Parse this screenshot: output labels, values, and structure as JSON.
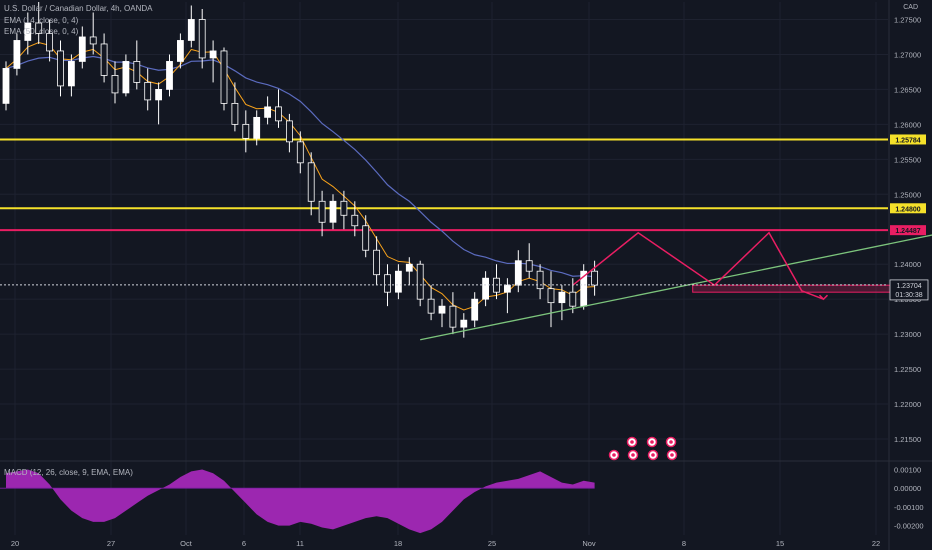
{
  "header": {
    "symbol_line": "U.S. Dollar / Canadian Dollar, 4h, OANDA",
    "ema1_line": "EMA (14, close, 0, 4)",
    "ema2_line": "EMA (50, close, 0, 4)",
    "currency": "CAD"
  },
  "macd": {
    "label": "MACD (12, 26, close, 9, EMA, EMA)"
  },
  "colors": {
    "background": "#131722",
    "up": "#ffffff",
    "down": "#ffffff",
    "ema_fast": "#f7a21b",
    "ema_slow": "#5b6bbf",
    "support_level": "#f5e12a",
    "resistance_level": "#e91e63",
    "trendline": "#7cc47c",
    "projection": "#e91e63",
    "macd_hist": "#9c27b0"
  },
  "chart_data": [
    {
      "type": "candlestick",
      "title": "U.S. Dollar / Canadian Dollar, 4h, OANDA",
      "y_axis": {
        "ticks": [
          "1.27500",
          "1.27000",
          "1.26500",
          "1.26000",
          "1.25500",
          "1.25000",
          "1.24000",
          "1.23500",
          "1.23000",
          "1.22500",
          "1.22000",
          "1.21500"
        ],
        "range": [
          1.212,
          1.2775
        ]
      },
      "x_axis": {
        "ticks": [
          "20",
          "27",
          "Oct",
          "6",
          "11",
          "18",
          "25",
          "Nov",
          "8",
          "15",
          "22"
        ]
      },
      "ohlc": [
        [
          1.263,
          1.269,
          1.262,
          1.268
        ],
        [
          1.268,
          1.273,
          1.267,
          1.272
        ],
        [
          1.272,
          1.276,
          1.27,
          1.2745
        ],
        [
          1.2745,
          1.2775,
          1.2715,
          1.273
        ],
        [
          1.273,
          1.275,
          1.269,
          1.2705
        ],
        [
          1.2705,
          1.272,
          1.264,
          1.2655
        ],
        [
          1.2655,
          1.27,
          1.264,
          1.269
        ],
        [
          1.269,
          1.274,
          1.268,
          1.2725
        ],
        [
          1.2725,
          1.276,
          1.27,
          1.2715
        ],
        [
          1.2715,
          1.273,
          1.266,
          1.267
        ],
        [
          1.267,
          1.269,
          1.263,
          1.2645
        ],
        [
          1.2645,
          1.27,
          1.264,
          1.269
        ],
        [
          1.269,
          1.272,
          1.265,
          1.266
        ],
        [
          1.266,
          1.268,
          1.262,
          1.2635
        ],
        [
          1.2635,
          1.266,
          1.26,
          1.265
        ],
        [
          1.265,
          1.27,
          1.264,
          1.269
        ],
        [
          1.269,
          1.273,
          1.268,
          1.272
        ],
        [
          1.272,
          1.277,
          1.271,
          1.275
        ],
        [
          1.275,
          1.2765,
          1.268,
          1.2695
        ],
        [
          1.2695,
          1.272,
          1.266,
          1.2705
        ],
        [
          1.2705,
          1.271,
          1.262,
          1.263
        ],
        [
          1.263,
          1.266,
          1.259,
          1.26
        ],
        [
          1.26,
          1.262,
          1.256,
          1.258
        ],
        [
          1.258,
          1.262,
          1.257,
          1.261
        ],
        [
          1.261,
          1.264,
          1.26,
          1.2625
        ],
        [
          1.2625,
          1.265,
          1.2595,
          1.2605
        ],
        [
          1.2605,
          1.2615,
          1.256,
          1.2575
        ],
        [
          1.2575,
          1.259,
          1.253,
          1.2545
        ],
        [
          1.2545,
          1.256,
          1.247,
          1.249
        ],
        [
          1.249,
          1.2505,
          1.244,
          1.246
        ],
        [
          1.246,
          1.25,
          1.245,
          1.249
        ],
        [
          1.249,
          1.2505,
          1.245,
          1.247
        ],
        [
          1.247,
          1.249,
          1.244,
          1.2455
        ],
        [
          1.2455,
          1.247,
          1.241,
          1.242
        ],
        [
          1.242,
          1.244,
          1.237,
          1.2385
        ],
        [
          1.2385,
          1.24,
          1.234,
          1.236
        ],
        [
          1.236,
          1.24,
          1.235,
          1.239
        ],
        [
          1.239,
          1.241,
          1.237,
          1.24
        ],
        [
          1.24,
          1.2405,
          1.234,
          1.235
        ],
        [
          1.235,
          1.237,
          1.232,
          1.233
        ],
        [
          1.233,
          1.235,
          1.231,
          1.234
        ],
        [
          1.234,
          1.236,
          1.23,
          1.231
        ],
        [
          1.231,
          1.233,
          1.2295,
          1.232
        ],
        [
          1.232,
          1.236,
          1.231,
          1.235
        ],
        [
          1.235,
          1.239,
          1.234,
          1.238
        ],
        [
          1.238,
          1.24,
          1.235,
          1.236
        ],
        [
          1.236,
          1.238,
          1.233,
          1.237
        ],
        [
          1.237,
          1.242,
          1.236,
          1.2405
        ],
        [
          1.2405,
          1.243,
          1.238,
          1.239
        ],
        [
          1.239,
          1.24,
          1.235,
          1.2365
        ],
        [
          1.2365,
          1.239,
          1.231,
          1.2345
        ],
        [
          1.2345,
          1.237,
          1.232,
          1.236
        ],
        [
          1.236,
          1.238,
          1.233,
          1.234
        ],
        [
          1.234,
          1.24,
          1.2335,
          1.239
        ],
        [
          1.239,
          1.2405,
          1.2355,
          1.237
        ]
      ],
      "overlays": {
        "horizontal_levels": [
          {
            "label": "1.25784",
            "value": 1.25784,
            "style": "support_level"
          },
          {
            "label": "1.24800",
            "value": 1.248,
            "style": "support_level"
          },
          {
            "label": "1.24487",
            "value": 1.24487,
            "style": "resistance_level"
          }
        ],
        "current_price": {
          "label": "1.23704",
          "value": 1.23704,
          "countdown": "01:30:38"
        },
        "trendline": {
          "from": {
            "bar": 38,
            "price": 1.2292
          },
          "to": {
            "bar": 86,
            "price": 1.2445
          }
        },
        "projection_path": [
          {
            "bar": 52,
            "price": 1.237
          },
          {
            "bar": 58,
            "price": 1.2445
          },
          {
            "bar": 65,
            "price": 1.237
          },
          {
            "bar": 70,
            "price": 1.2445
          },
          {
            "bar": 73,
            "price": 1.2362
          },
          {
            "bar": 75,
            "price": 1.235
          }
        ],
        "projection_box": {
          "from_bar": 63,
          "to_bar": 82,
          "top": 1.237,
          "bottom": 1.236
        }
      }
    },
    {
      "type": "bar",
      "title": "MACD (12, 26, close, 9, EMA, EMA)",
      "y_axis": {
        "ticks": [
          "0.00100",
          "0.00000",
          "-0.00100",
          "-0.00200"
        ],
        "range": [
          -0.0025,
          0.0014
        ]
      },
      "values": [
        0.0008,
        0.0009,
        0.001,
        0.0008,
        0.0002,
        -0.0006,
        -0.0012,
        -0.0016,
        -0.0018,
        -0.0018,
        -0.0016,
        -0.0012,
        -0.0008,
        -0.0004,
        -0.0001,
        0.0002,
        0.0006,
        0.0009,
        0.001,
        0.0008,
        0.0004,
        -0.0002,
        -0.0008,
        -0.0014,
        -0.0018,
        -0.002,
        -0.002,
        -0.0018,
        -0.0019,
        -0.0021,
        -0.0022,
        -0.002,
        -0.0018,
        -0.0016,
        -0.0015,
        -0.0016,
        -0.0019,
        -0.0022,
        -0.0024,
        -0.0022,
        -0.0018,
        -0.0012,
        -0.0006,
        -0.0002,
        0.0001,
        0.0003,
        0.0004,
        0.0005,
        0.0007,
        0.0009,
        0.0006,
        0.0003,
        0.0002,
        0.0004,
        0.0003
      ]
    }
  ]
}
